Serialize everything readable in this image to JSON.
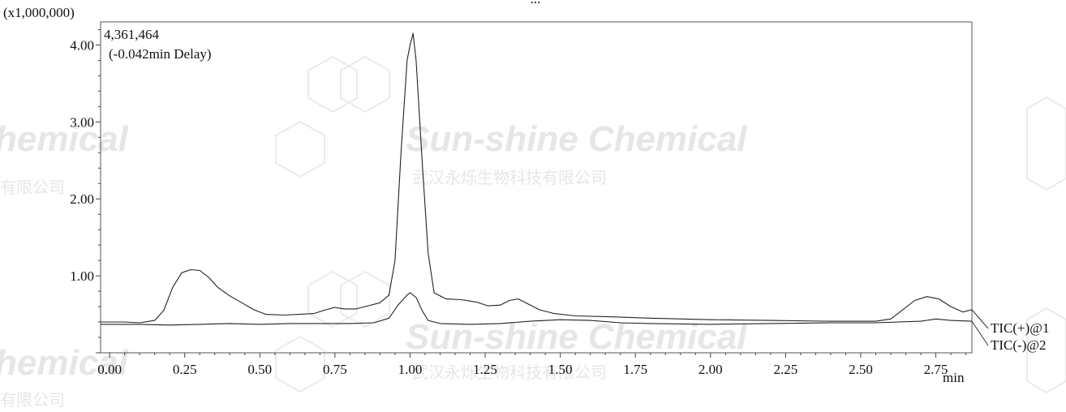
{
  "chart_data": {
    "type": "line",
    "title": "",
    "top_label_partial": "...",
    "y_multiplier_label": "(x1,000,000)",
    "xlabel": "min",
    "ylabel": "",
    "xlim": [
      -0.03,
      2.87
    ],
    "ylim": [
      0.0,
      4.3
    ],
    "x_ticks": [
      "0.00",
      "0.25",
      "0.50",
      "0.75",
      "1.00",
      "1.25",
      "1.50",
      "1.75",
      "2.00",
      "2.25",
      "2.50",
      "2.75"
    ],
    "y_ticks": [
      "1.00",
      "2.00",
      "3.00",
      "4.00"
    ],
    "annotation_value": "4,361,464",
    "annotation_delay": "(-0.042min Delay)",
    "series": [
      {
        "name": "TIC(+)@1",
        "color": "#222222",
        "points": [
          [
            -0.03,
            0.4
          ],
          [
            0.05,
            0.4
          ],
          [
            0.1,
            0.39
          ],
          [
            0.15,
            0.42
          ],
          [
            0.18,
            0.55
          ],
          [
            0.21,
            0.85
          ],
          [
            0.24,
            1.04
          ],
          [
            0.27,
            1.08
          ],
          [
            0.3,
            1.07
          ],
          [
            0.33,
            0.98
          ],
          [
            0.36,
            0.85
          ],
          [
            0.4,
            0.74
          ],
          [
            0.44,
            0.65
          ],
          [
            0.48,
            0.56
          ],
          [
            0.52,
            0.5
          ],
          [
            0.58,
            0.49
          ],
          [
            0.63,
            0.5
          ],
          [
            0.68,
            0.51
          ],
          [
            0.72,
            0.56
          ],
          [
            0.75,
            0.59
          ],
          [
            0.78,
            0.57
          ],
          [
            0.82,
            0.57
          ],
          [
            0.86,
            0.61
          ],
          [
            0.9,
            0.65
          ],
          [
            0.93,
            0.75
          ],
          [
            0.95,
            1.2
          ],
          [
            0.97,
            2.6
          ],
          [
            0.99,
            3.8
          ],
          [
            1.0,
            4.0
          ],
          [
            1.01,
            4.15
          ],
          [
            1.02,
            3.8
          ],
          [
            1.04,
            2.5
          ],
          [
            1.06,
            1.3
          ],
          [
            1.08,
            0.78
          ],
          [
            1.12,
            0.7
          ],
          [
            1.17,
            0.69
          ],
          [
            1.22,
            0.66
          ],
          [
            1.26,
            0.61
          ],
          [
            1.3,
            0.62
          ],
          [
            1.33,
            0.68
          ],
          [
            1.36,
            0.7
          ],
          [
            1.39,
            0.64
          ],
          [
            1.43,
            0.56
          ],
          [
            1.48,
            0.51
          ],
          [
            1.55,
            0.48
          ],
          [
            1.65,
            0.47
          ],
          [
            1.8,
            0.45
          ],
          [
            2.0,
            0.43
          ],
          [
            2.2,
            0.42
          ],
          [
            2.4,
            0.41
          ],
          [
            2.55,
            0.41
          ],
          [
            2.6,
            0.44
          ],
          [
            2.64,
            0.56
          ],
          [
            2.68,
            0.68
          ],
          [
            2.72,
            0.73
          ],
          [
            2.76,
            0.7
          ],
          [
            2.8,
            0.6
          ],
          [
            2.84,
            0.53
          ],
          [
            2.87,
            0.56
          ]
        ]
      },
      {
        "name": "TIC(-)@2",
        "color": "#222222",
        "points": [
          [
            -0.03,
            0.37
          ],
          [
            0.1,
            0.37
          ],
          [
            0.2,
            0.36
          ],
          [
            0.3,
            0.37
          ],
          [
            0.4,
            0.38
          ],
          [
            0.5,
            0.37
          ],
          [
            0.6,
            0.38
          ],
          [
            0.7,
            0.38
          ],
          [
            0.8,
            0.38
          ],
          [
            0.88,
            0.39
          ],
          [
            0.93,
            0.45
          ],
          [
            0.96,
            0.62
          ],
          [
            0.99,
            0.75
          ],
          [
            1.0,
            0.78
          ],
          [
            1.02,
            0.72
          ],
          [
            1.04,
            0.55
          ],
          [
            1.06,
            0.42
          ],
          [
            1.1,
            0.38
          ],
          [
            1.2,
            0.37
          ],
          [
            1.3,
            0.38
          ],
          [
            1.4,
            0.41
          ],
          [
            1.5,
            0.43
          ],
          [
            1.6,
            0.42
          ],
          [
            1.7,
            0.39
          ],
          [
            1.8,
            0.38
          ],
          [
            2.0,
            0.37
          ],
          [
            2.2,
            0.38
          ],
          [
            2.4,
            0.39
          ],
          [
            2.55,
            0.39
          ],
          [
            2.7,
            0.41
          ],
          [
            2.75,
            0.44
          ],
          [
            2.8,
            0.42
          ],
          [
            2.87,
            0.41
          ]
        ]
      }
    ],
    "watermark": {
      "brand": "Sun-shine Chemical",
      "cn": "武汉永烁生物科技有限公司",
      "side_en": "hemical",
      "side_cn": "有限公司"
    },
    "grid": false,
    "legend_position": "right, at line ends"
  }
}
